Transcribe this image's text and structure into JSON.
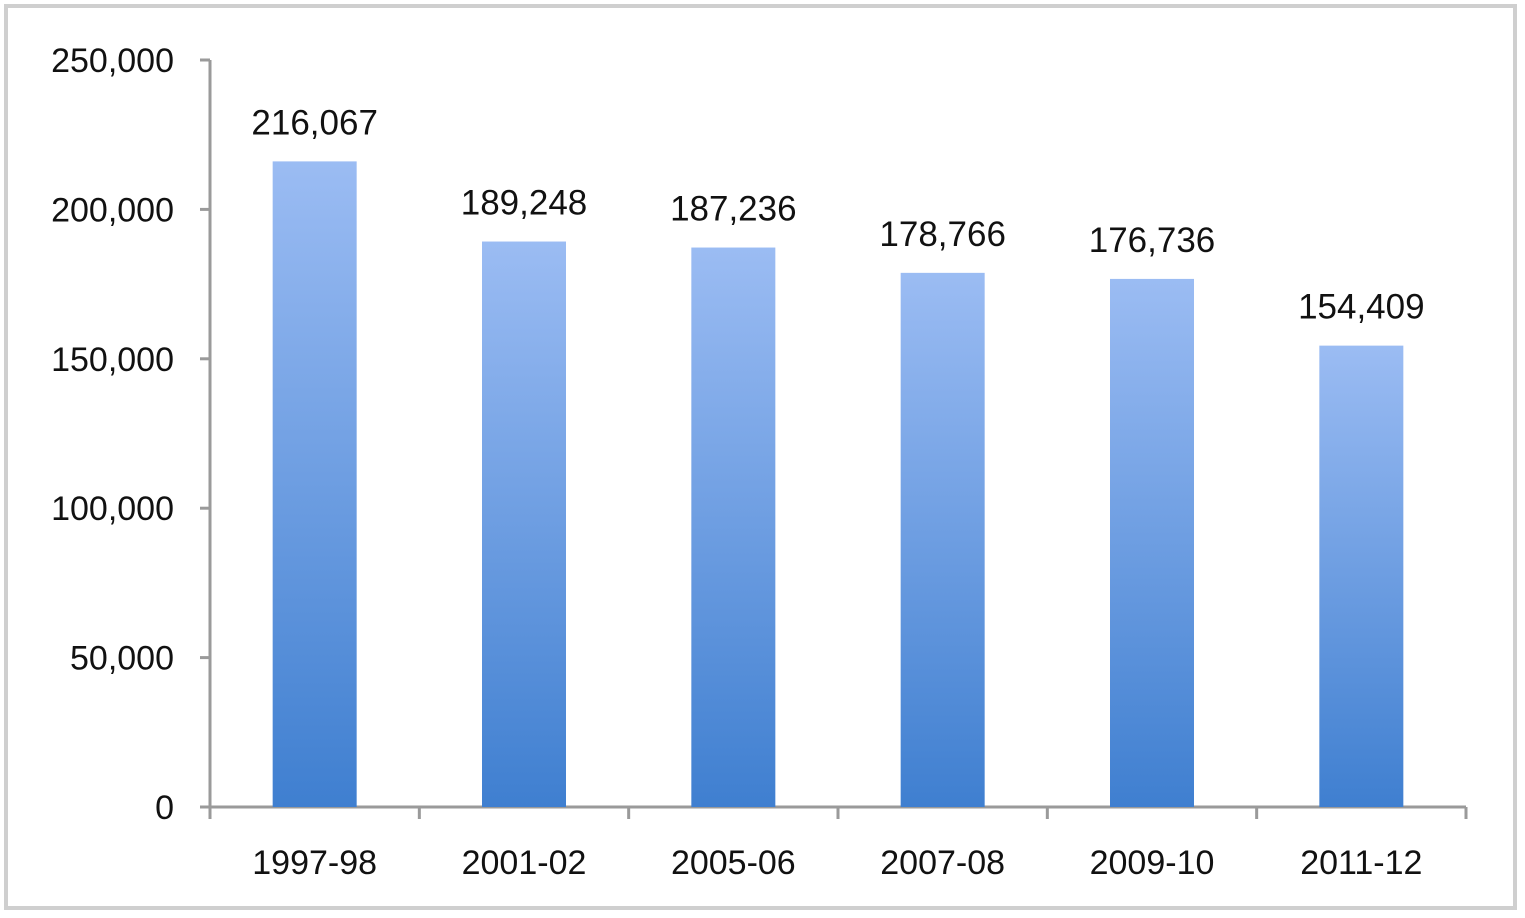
{
  "chart_data": {
    "type": "bar",
    "categories": [
      "1997-98",
      "2001-02",
      "2005-06",
      "2007-08",
      "2009-10",
      "2011-12"
    ],
    "values": [
      216067,
      189248,
      187236,
      178766,
      176736,
      154409
    ],
    "data_labels": [
      "216,067",
      "189,248",
      "187,236",
      "178,766",
      "176,736",
      "154,409"
    ],
    "title": "",
    "xlabel": "",
    "ylabel": "",
    "ylim": [
      0,
      250000
    ],
    "yticks": [
      0,
      50000,
      100000,
      150000,
      200000,
      250000
    ],
    "ytick_labels": [
      "0",
      "50,000",
      "100,000",
      "150,000",
      "200,000",
      "250,000"
    ],
    "grid": false,
    "legend": "none",
    "bar_color_top": "#9bbcf3",
    "bar_color_bottom": "#3f7fd0",
    "axis_color": "#9a9a9a",
    "frame_color": "#cfcfcf"
  }
}
